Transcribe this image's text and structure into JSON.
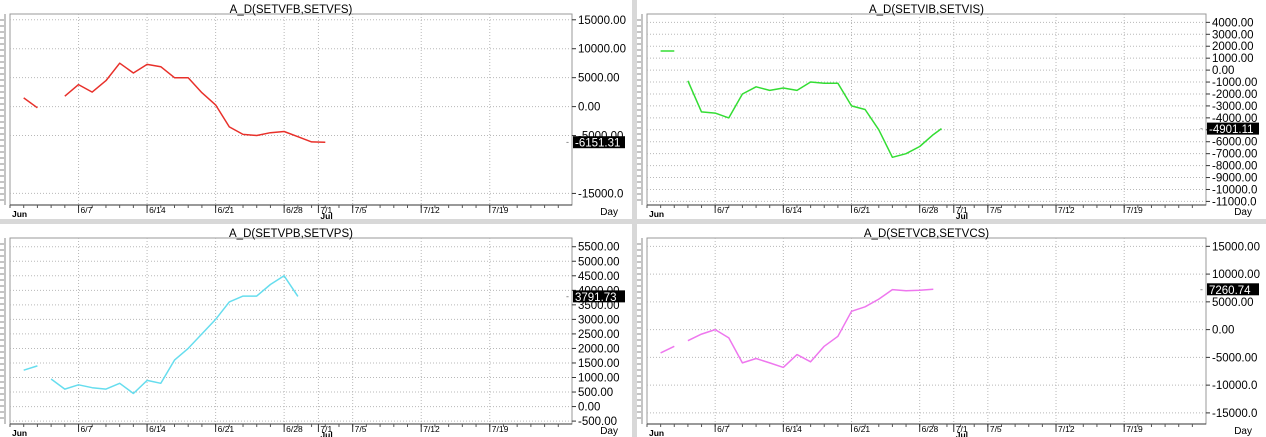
{
  "axis_common": {
    "date_ticks": [
      "6/7",
      "6/14",
      "6/21",
      "6/28",
      "7/1",
      "7/5",
      "7/12",
      "7/19"
    ],
    "month_labels": [
      "Jun",
      "Jul"
    ],
    "x_unit_label": "Day"
  },
  "chart_data": [
    {
      "type": "line",
      "title": "A_D(SETVFB,SETVFS)",
      "color": "#e8302a",
      "ylim": [
        -17000,
        16000
      ],
      "y_ticks": [
        "15000.00",
        "10000.00",
        "5000.00",
        "0.00",
        "-5000.00",
        "-15000.0"
      ],
      "y_tick_values": [
        15000,
        10000,
        5000,
        0,
        -5000,
        -15000
      ],
      "last_value_label": "-6151.31",
      "last_value": -6151.31,
      "segments": [
        [
          [
            1,
            1500
          ],
          [
            2,
            -200
          ]
        ],
        [
          [
            4,
            1800
          ],
          [
            5,
            3800
          ],
          [
            6,
            2500
          ],
          [
            7,
            4500
          ],
          [
            8,
            7500
          ],
          [
            9,
            5800
          ],
          [
            10,
            7300
          ],
          [
            11,
            6900
          ],
          [
            12,
            5000
          ],
          [
            13,
            5000
          ],
          [
            14,
            2400
          ],
          [
            15,
            300
          ],
          [
            16,
            -3500
          ],
          [
            17,
            -4800
          ],
          [
            18,
            -5000
          ],
          [
            19,
            -4500
          ],
          [
            20,
            -4300
          ],
          [
            21,
            -5200
          ],
          [
            22,
            -6100
          ],
          [
            23,
            -6151.31
          ]
        ]
      ]
    },
    {
      "type": "line",
      "title": "A_D(SETVIB,SETVIS)",
      "color": "#33dd33",
      "ylim": [
        -11300,
        4700
      ],
      "y_ticks": [
        "4000.00",
        "3000.00",
        "2000.00",
        "1000.00",
        "0.00",
        "-1000.00",
        "-2000.00",
        "-3000.00",
        "-4000.00",
        "-5000.00",
        "-6000.00",
        "-7000.00",
        "-8000.00",
        "-9000.00",
        "-10000.0",
        "-11000.0"
      ],
      "y_tick_values": [
        4000,
        3000,
        2000,
        1000,
        0,
        -1000,
        -2000,
        -3000,
        -4000,
        -5000,
        -6000,
        -7000,
        -8000,
        -9000,
        -10000,
        -11000
      ],
      "last_value_label": "-4901.11",
      "last_value": -4901.11,
      "segments": [
        [
          [
            1,
            1600
          ],
          [
            2,
            1600
          ]
        ],
        [
          [
            3,
            -900
          ],
          [
            4,
            -3500
          ],
          [
            5,
            -3600
          ],
          [
            6,
            -4000
          ],
          [
            7,
            -2000
          ],
          [
            8,
            -1400
          ],
          [
            9,
            -1700
          ],
          [
            10,
            -1500
          ],
          [
            11,
            -1700
          ],
          [
            12,
            -1000
          ],
          [
            13,
            -1100
          ],
          [
            14,
            -1100
          ],
          [
            15,
            -3000
          ],
          [
            16,
            -3300
          ],
          [
            17,
            -5000
          ],
          [
            18,
            -7300
          ],
          [
            19,
            -7000
          ],
          [
            20,
            -6400
          ],
          [
            21,
            -5400
          ],
          [
            21.6,
            -4901.11
          ]
        ]
      ]
    },
    {
      "type": "line",
      "title": "A_D(SETVPB,SETVPS)",
      "color": "#66ddee",
      "ylim": [
        -600,
        5800
      ],
      "y_ticks": [
        "5500.00",
        "5000.00",
        "4500.00",
        "4000.00",
        "3500.00",
        "3000.00",
        "2500.00",
        "2000.00",
        "1500.00",
        "1000.00",
        "500.00",
        "0.00",
        "-500.00"
      ],
      "y_tick_values": [
        5500,
        5000,
        4500,
        4000,
        3500,
        3000,
        2500,
        2000,
        1500,
        1000,
        500,
        0,
        -500
      ],
      "last_value_label": "3791.73",
      "last_value": 3791.73,
      "segments": [
        [
          [
            1,
            1250
          ],
          [
            2,
            1400
          ]
        ],
        [
          [
            3,
            950
          ],
          [
            4,
            600
          ],
          [
            5,
            750
          ],
          [
            6,
            650
          ],
          [
            7,
            600
          ],
          [
            8,
            800
          ],
          [
            9,
            450
          ],
          [
            10,
            900
          ],
          [
            11,
            800
          ],
          [
            12,
            1600
          ],
          [
            13,
            2000
          ],
          [
            14,
            2500
          ],
          [
            15,
            3000
          ],
          [
            16,
            3600
          ],
          [
            17,
            3800
          ],
          [
            18,
            3800
          ],
          [
            19,
            4200
          ],
          [
            20,
            4500
          ],
          [
            21,
            3791.73
          ]
        ]
      ]
    },
    {
      "type": "line",
      "title": "A_D(SETVCB,SETVCS)",
      "color": "#ee77ee",
      "ylim": [
        -17000,
        16500
      ],
      "y_ticks": [
        "15000.00",
        "10000.00",
        "5000.00",
        "0.00",
        "-5000.00",
        "-10000.0",
        "-15000.0"
      ],
      "y_tick_values": [
        15000,
        10000,
        5000,
        0,
        -5000,
        -10000,
        -15000
      ],
      "last_value_label": "7260.74",
      "last_value": 7260.74,
      "segments": [
        [
          [
            1,
            -4200
          ],
          [
            2,
            -3000
          ]
        ],
        [
          [
            3,
            -2000
          ],
          [
            4,
            -800
          ],
          [
            5,
            0
          ],
          [
            6,
            -1500
          ],
          [
            7,
            -6000
          ],
          [
            8,
            -5200
          ],
          [
            9,
            -6000
          ],
          [
            10,
            -6800
          ],
          [
            11,
            -4500
          ],
          [
            12,
            -5800
          ],
          [
            13,
            -3000
          ],
          [
            14,
            -1200
          ],
          [
            15,
            3300
          ],
          [
            16,
            4100
          ],
          [
            17,
            5500
          ],
          [
            18,
            7200
          ],
          [
            19,
            7000
          ],
          [
            20,
            7100
          ],
          [
            21,
            7260.74
          ]
        ]
      ]
    }
  ]
}
